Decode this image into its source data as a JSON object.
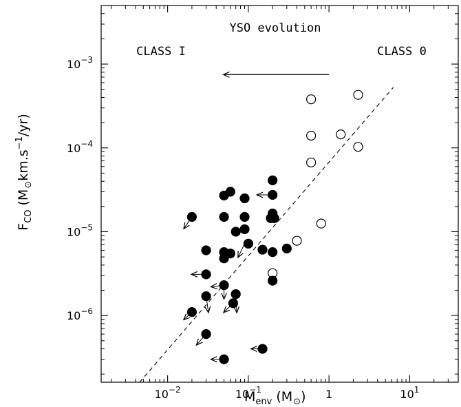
{
  "chart_data": {
    "type": "scatter",
    "title": "",
    "xlabel": "M_env (M_sun)",
    "ylabel": "F_CO (M_sun km.s^-1/yr)",
    "xlabel_main": "M",
    "xlabel_sub": "env",
    "xlabel_unit": "(M",
    "xlabel_close": ")",
    "ylabel_main": "F",
    "ylabel_sub": "CO",
    "ylabel_open": "(M",
    "ylabel_mid": "km.s",
    "ylabel_sup": "−1",
    "ylabel_end": "/yr)",
    "x_scale": "log",
    "y_scale": "log",
    "xlim": [
      0.0015,
      40
    ],
    "ylim": [
      1.6e-07,
      0.005
    ],
    "x_ticks": [
      {
        "value": 0.01,
        "base": "10",
        "exp": "−2"
      },
      {
        "value": 0.1,
        "base": "10",
        "exp": "−1"
      },
      {
        "value": 1,
        "base": "1",
        "exp": ""
      },
      {
        "value": 10,
        "base": "10",
        "exp": "1"
      }
    ],
    "y_ticks": [
      {
        "value": 1e-06,
        "base": "10",
        "exp": "−6"
      },
      {
        "value": 1e-05,
        "base": "10",
        "exp": "−5"
      },
      {
        "value": 0.0001,
        "base": "10",
        "exp": "−4"
      },
      {
        "value": 0.001,
        "base": "10",
        "exp": "−3"
      }
    ],
    "annotations": {
      "class_i": "CLASS I",
      "class_0": "CLASS 0",
      "evolution": "YSO evolution",
      "evolution_arrow": {
        "from": [
          1.0,
          0.00075
        ],
        "to": [
          0.05,
          0.00075
        ]
      }
    },
    "fit_line": {
      "style": "dashed",
      "points": [
        [
          0.0045,
          1.6e-07
        ],
        [
          6.3,
          0.00053
        ]
      ]
    },
    "series": [
      {
        "marker": "open-circle",
        "points": [
          [
            0.6,
            0.00038
          ],
          [
            2.3,
            0.00043
          ],
          [
            0.6,
            0.00014
          ],
          [
            1.4,
            0.000145
          ],
          [
            2.3,
            0.000103
          ],
          [
            0.6,
            6.7e-05
          ],
          [
            0.8,
            1.25e-05
          ],
          [
            0.4,
            7.8e-06
          ],
          [
            0.2,
            3.2e-06
          ]
        ]
      },
      {
        "marker": "filled-circle",
        "points": [
          [
            0.2,
            4.1e-05
          ],
          [
            0.06,
            3e-05
          ],
          [
            0.05,
            2.7e-05
          ],
          [
            0.2,
            2.75e-05
          ],
          [
            0.09,
            2.5e-05
          ],
          [
            0.2,
            1.65e-05
          ],
          [
            0.02,
            1.5e-05
          ],
          [
            0.05,
            1.5e-05
          ],
          [
            0.09,
            1.5e-05
          ],
          [
            0.19,
            1.45e-05
          ],
          [
            0.21,
            1.45e-05
          ],
          [
            0.09,
            1.07e-05
          ],
          [
            0.07,
            1e-05
          ],
          [
            0.1,
            7.2e-06
          ],
          [
            0.03,
            6e-06
          ],
          [
            0.05,
            5.7e-06
          ],
          [
            0.06,
            5.5e-06
          ],
          [
            0.15,
            6.1e-06
          ],
          [
            0.2,
            5.7e-06
          ],
          [
            0.3,
            6.3e-06
          ],
          [
            0.05,
            4.8e-06
          ],
          [
            0.03,
            3.1e-06
          ],
          [
            0.2,
            2.6e-06
          ],
          [
            0.05,
            2.3e-06
          ],
          [
            0.03,
            1.7e-06
          ],
          [
            0.07,
            1.8e-06
          ],
          [
            0.065,
            1.4e-06
          ],
          [
            0.02,
            1.1e-06
          ],
          [
            0.03,
            6e-07
          ],
          [
            0.15,
            4e-07
          ],
          [
            0.05,
            3e-07
          ]
        ]
      }
    ],
    "upper_limit_arrows": [
      {
        "from": [
          0.2,
          2.75e-05
        ],
        "to": [
          0.13,
          2.75e-05
        ]
      },
      {
        "from": [
          0.02,
          1.5e-05
        ],
        "to": [
          0.016,
          1.1e-05
        ]
      },
      {
        "from": [
          0.09,
          7.2e-06
        ],
        "to": [
          0.075,
          5e-06
        ]
      },
      {
        "from": [
          0.03,
          3.1e-06
        ],
        "to": [
          0.02,
          3.1e-06
        ]
      },
      {
        "from": [
          0.05,
          2.3e-06
        ],
        "to": [
          0.035,
          2.2e-06
        ]
      },
      {
        "from": [
          0.03,
          1.7e-06
        ],
        "to": [
          0.032,
          1.1e-06
        ]
      },
      {
        "from": [
          0.05,
          2.3e-06
        ],
        "to": [
          0.05,
          1.6e-06
        ]
      },
      {
        "from": [
          0.07,
          1.8e-06
        ],
        "to": [
          0.072,
          1.1e-06
        ]
      },
      {
        "from": [
          0.065,
          1.4e-06
        ],
        "to": [
          0.05,
          1.1e-06
        ]
      },
      {
        "from": [
          0.02,
          1.1e-06
        ],
        "to": [
          0.016,
          9e-07
        ]
      },
      {
        "from": [
          0.03,
          6e-07
        ],
        "to": [
          0.023,
          4.5e-07
        ]
      },
      {
        "from": [
          0.15,
          4e-07
        ],
        "to": [
          0.11,
          4e-07
        ]
      },
      {
        "from": [
          0.05,
          3e-07
        ],
        "to": [
          0.035,
          3e-07
        ]
      }
    ]
  }
}
